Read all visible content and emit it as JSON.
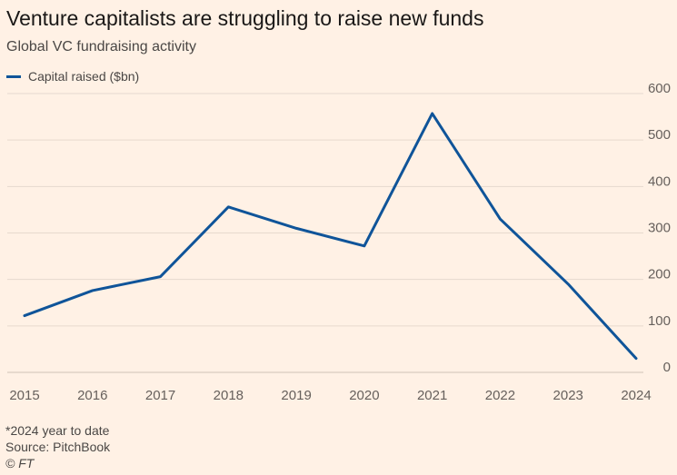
{
  "header": {
    "title": "Venture capitalists are struggling to raise new funds",
    "subtitle": "Global VC fundraising activity"
  },
  "footer": {
    "note": "*2024 year to date",
    "source": "Source: PitchBook",
    "copyright": "© FT"
  },
  "colors": {
    "background": "#fff1e5",
    "series": "#0f5499",
    "grid": "#e6d9ce",
    "tick_text": "#66605c"
  },
  "chart_data": {
    "type": "line",
    "title": "Venture capitalists are struggling to raise new funds",
    "subtitle": "Global VC fundraising activity",
    "categories": [
      "2015",
      "2016",
      "2017",
      "2018",
      "2019",
      "2020",
      "2021",
      "2022",
      "2023",
      "2024"
    ],
    "series": [
      {
        "name": "Capital raised ($bn)",
        "values": [
          122,
          176,
          206,
          356,
          310,
          272,
          557,
          330,
          190,
          30
        ]
      }
    ],
    "xlabel": "",
    "ylabel": "",
    "ylim": [
      0,
      600
    ],
    "yticks": [
      0,
      100,
      200,
      300,
      400,
      500,
      600
    ],
    "y_axis_side": "right",
    "grid": true,
    "legend_position": "top-left"
  }
}
